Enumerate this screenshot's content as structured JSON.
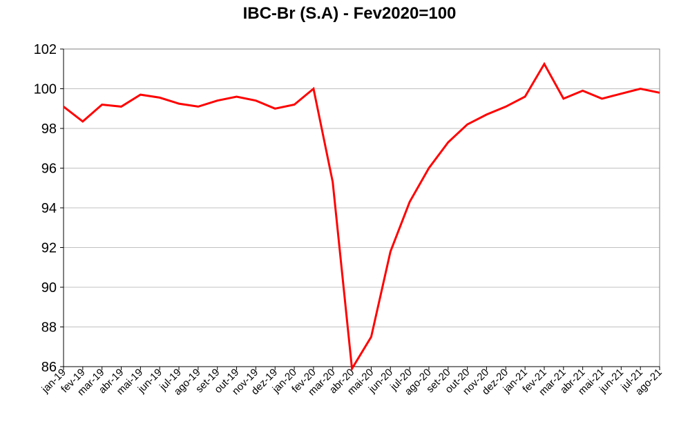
{
  "chart_data": {
    "type": "line",
    "title": "IBC-Br (S.A)  - Fev2020=100",
    "xlabel": "",
    "ylabel": "",
    "ylim": [
      86,
      102
    ],
    "yticks": [
      "86",
      "88",
      "90",
      "92",
      "94",
      "96",
      "98",
      "100",
      "102"
    ],
    "grid": true,
    "categories": [
      "jan-19",
      "fev-19",
      "mar-19",
      "abr-19",
      "mai-19",
      "jun-19",
      "jul-19",
      "ago-19",
      "set-19",
      "out-19",
      "nov-19",
      "dez-19",
      "jan-20",
      "fev-20",
      "mar-20",
      "abr-20",
      "mai-20",
      "jun-20",
      "jul-20",
      "ago-20",
      "set-20",
      "out-20",
      "nov-20",
      "dez-20",
      "jan-21",
      "fev-21",
      "mar-21",
      "abr-21",
      "mai-21",
      "jun-21",
      "jul-21",
      "ago-21"
    ],
    "series": [
      {
        "color": "#ff0000",
        "values": [
          99.1,
          98.35,
          99.2,
          99.1,
          99.7,
          99.55,
          99.25,
          99.1,
          99.4,
          99.6,
          99.4,
          99.0,
          99.2,
          100.0,
          95.3,
          85.9,
          87.5,
          91.8,
          94.3,
          96.0,
          97.3,
          98.2,
          98.7,
          99.1,
          99.6,
          101.25,
          99.5,
          99.9,
          99.5,
          99.75,
          100.0,
          99.8
        ]
      }
    ]
  }
}
